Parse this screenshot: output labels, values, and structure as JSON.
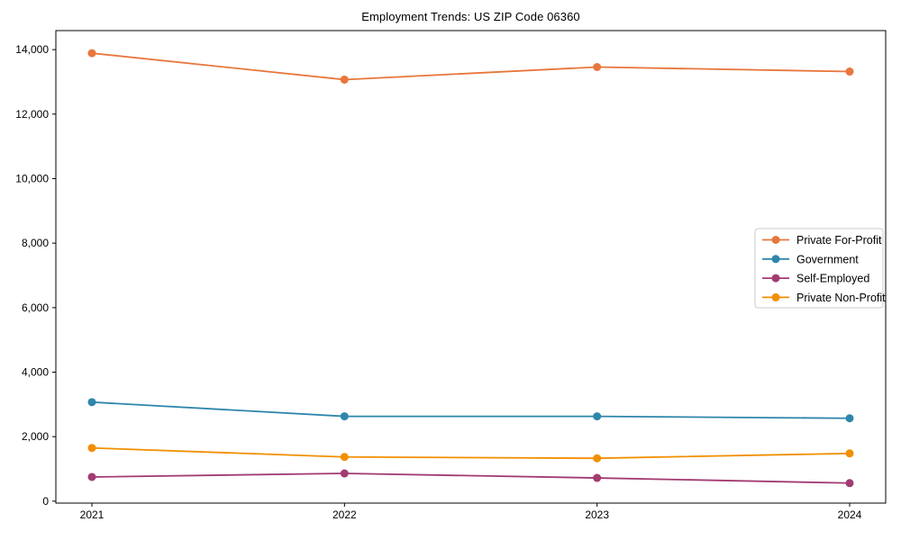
{
  "chart_data": {
    "type": "line",
    "title": "Employment Trends: US ZIP Code 06360",
    "xlabel": "",
    "ylabel": "",
    "categories": [
      "2021",
      "2022",
      "2023",
      "2024"
    ],
    "series": [
      {
        "name": "Private For-Profit",
        "color": "#E8763C",
        "values": [
          13890,
          13070,
          13460,
          13320
        ]
      },
      {
        "name": "Government",
        "color": "#2E86AB",
        "values": [
          3070,
          2630,
          2630,
          2570
        ]
      },
      {
        "name": "Self-Employed",
        "color": "#A23B72",
        "values": [
          750,
          860,
          720,
          560
        ]
      },
      {
        "name": "Private Non-Profit",
        "color": "#F18F01",
        "values": [
          1650,
          1370,
          1330,
          1480
        ]
      }
    ],
    "ylim": [
      -60,
      14590
    ],
    "yticks": [
      {
        "value": 0,
        "label": "0"
      },
      {
        "value": 2000,
        "label": "2,000"
      },
      {
        "value": 4000,
        "label": "4,000"
      },
      {
        "value": 6000,
        "label": "6,000"
      },
      {
        "value": 8000,
        "label": "8,000"
      },
      {
        "value": 10000,
        "label": "10,000"
      },
      {
        "value": 12000,
        "label": "12,000"
      },
      {
        "value": 14000,
        "label": "14,000"
      }
    ],
    "grid": false,
    "legend_position": "center-right",
    "axis_color": "#000000",
    "text_color": "#000000",
    "legend_border_color": "#cccccc",
    "background_color": "#ffffff"
  }
}
